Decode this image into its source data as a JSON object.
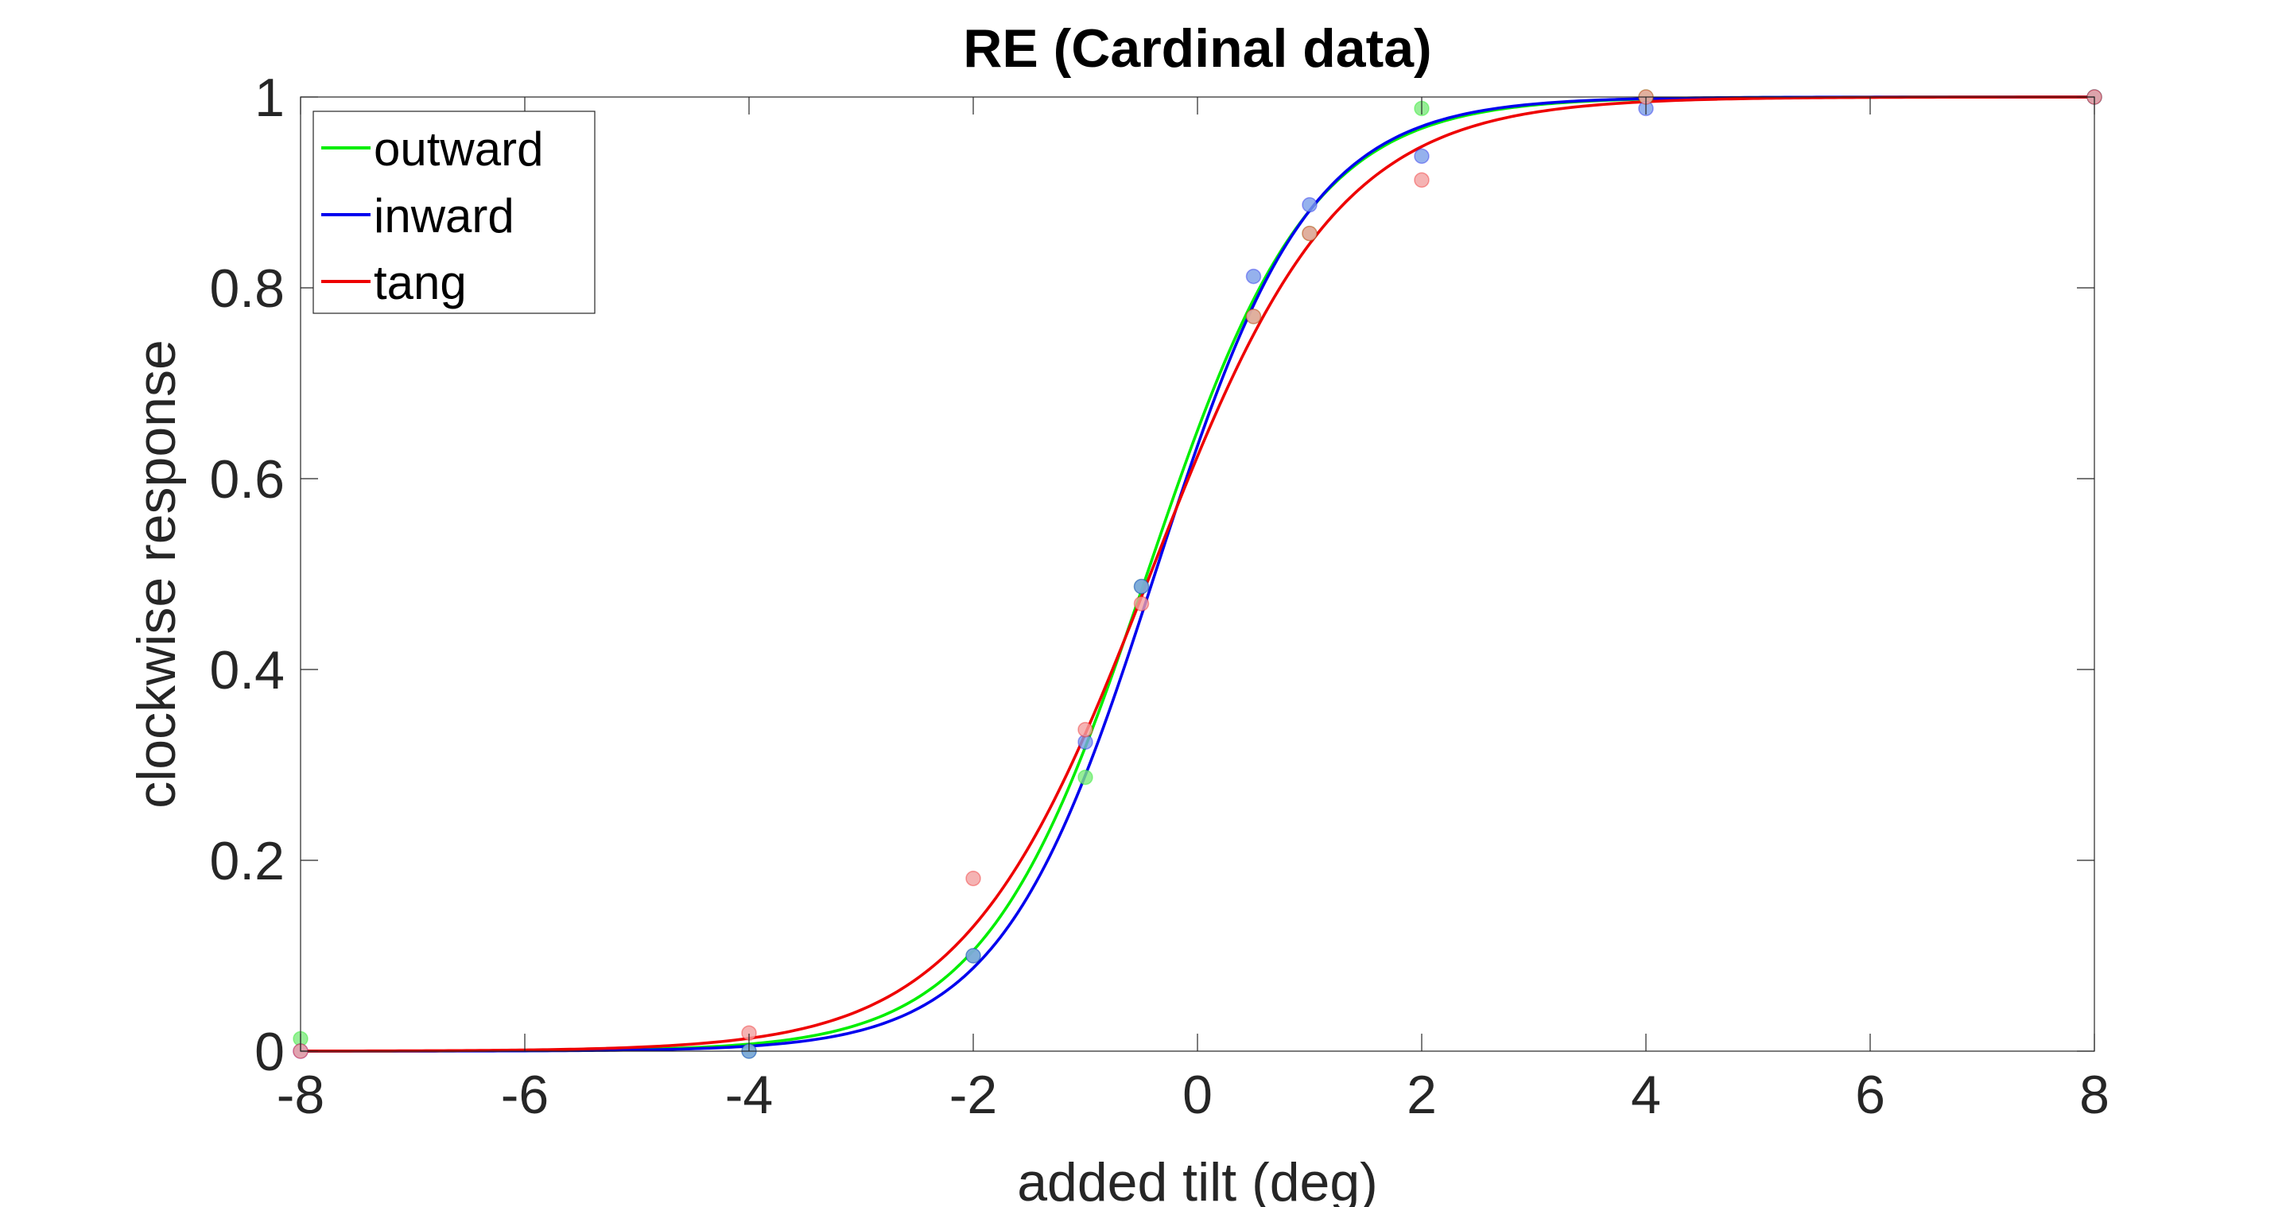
{
  "chart_data": {
    "type": "scatter",
    "title": "RE (Cardinal data)",
    "xlabel": "added tilt (deg)",
    "ylabel": "clockwise response",
    "xlim": [
      -8,
      8
    ],
    "ylim": [
      0,
      1
    ],
    "xticks": [
      -8,
      -6,
      -4,
      -2,
      0,
      2,
      4,
      6,
      8
    ],
    "yticks": [
      0,
      0.2,
      0.4,
      0.6,
      0.8,
      1
    ],
    "xtick_labels": [
      "-8",
      "-6",
      "-4",
      "-2",
      "0",
      "2",
      "4",
      "6",
      "8"
    ],
    "ytick_labels": [
      "0",
      "0.2",
      "0.4",
      "0.6",
      "0.8",
      "1"
    ],
    "grid": false,
    "legend_position": "top-left",
    "series": [
      {
        "name": "outward",
        "color": "#00ee00",
        "marker_fill": "#7dea7d",
        "fit": {
          "type": "logistic",
          "midpoint": -0.45,
          "slope": 1.38
        },
        "points": [
          {
            "x": -8,
            "y": 0.013
          },
          {
            "x": -4,
            "y": 0.0
          },
          {
            "x": -2,
            "y": 0.1
          },
          {
            "x": -1,
            "y": 0.287
          },
          {
            "x": -0.5,
            "y": 0.487
          },
          {
            "x": 0.5,
            "y": 0.77
          },
          {
            "x": 1,
            "y": 0.857
          },
          {
            "x": 2,
            "y": 0.988
          },
          {
            "x": 4,
            "y": 1.0
          },
          {
            "x": 8,
            "y": 1.0
          }
        ]
      },
      {
        "name": "inward",
        "color": "#0000ee",
        "marker_fill": "#7a9ee8",
        "fit": {
          "type": "logistic",
          "midpoint": -0.38,
          "slope": 1.45
        },
        "points": [
          {
            "x": -8,
            "y": 0.0
          },
          {
            "x": -4,
            "y": 0.0
          },
          {
            "x": -2,
            "y": 0.1
          },
          {
            "x": -1,
            "y": 0.324
          },
          {
            "x": -0.5,
            "y": 0.487
          },
          {
            "x": 0.5,
            "y": 0.812
          },
          {
            "x": 1,
            "y": 0.887
          },
          {
            "x": 2,
            "y": 0.938
          },
          {
            "x": 4,
            "y": 0.988
          },
          {
            "x": 8,
            "y": 1.0
          }
        ]
      },
      {
        "name": "tang",
        "color": "#ee0000",
        "marker_fill": "#f2a0a0",
        "fit": {
          "type": "logistic",
          "midpoint": -0.42,
          "slope": 1.2
        },
        "points": [
          {
            "x": -8,
            "y": 0.0
          },
          {
            "x": -4,
            "y": 0.019
          },
          {
            "x": -2,
            "y": 0.181
          },
          {
            "x": -1,
            "y": 0.337
          },
          {
            "x": -0.5,
            "y": 0.469
          },
          {
            "x": 0.5,
            "y": 0.77
          },
          {
            "x": 1,
            "y": 0.857
          },
          {
            "x": 2,
            "y": 0.913
          },
          {
            "x": 4,
            "y": 1.0
          },
          {
            "x": 8,
            "y": 1.0
          }
        ]
      }
    ]
  }
}
